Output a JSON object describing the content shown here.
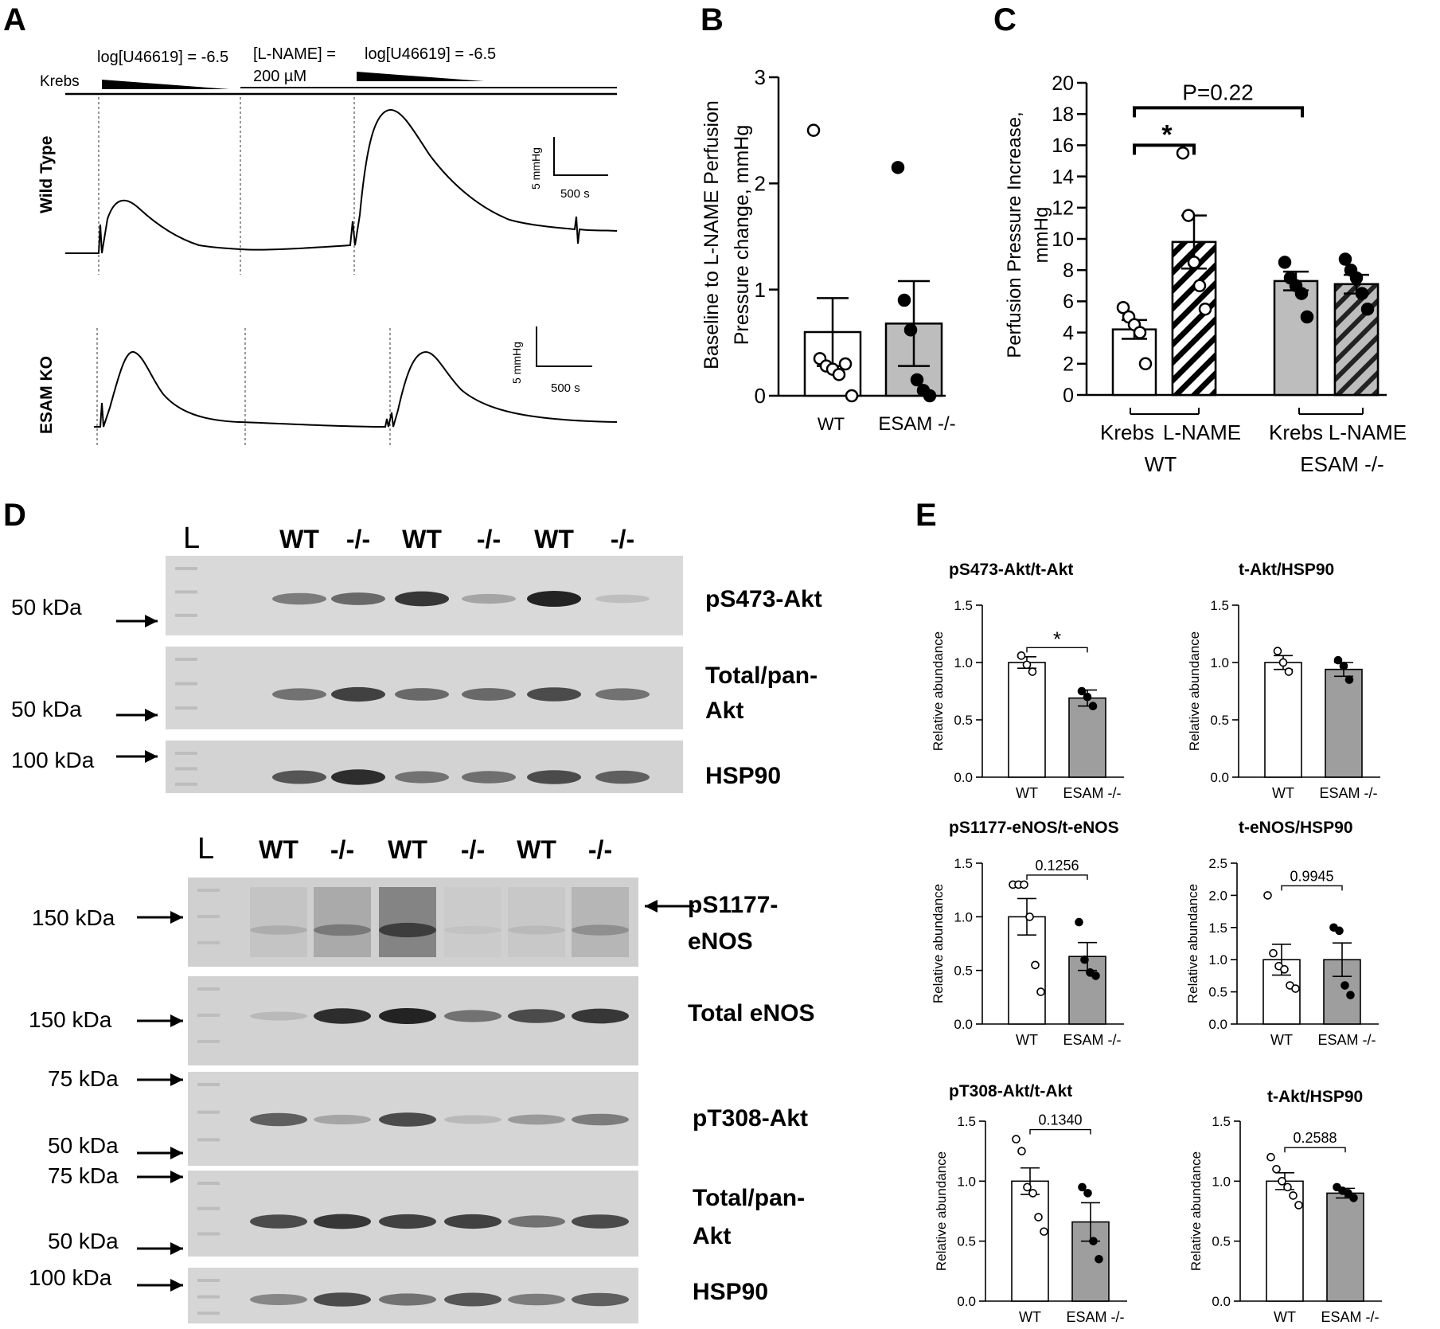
{
  "panel_letters": {
    "a": "A",
    "b": "B",
    "c": "C",
    "d": "D",
    "e": "E"
  },
  "panel_a": {
    "krebs": "Krebs",
    "u46619_first": "log[U46619] = -6.5",
    "lname_line1": "[L-NAME] =",
    "lname_line2": "200 µM",
    "u46619_second": "log[U46619] = -6.5",
    "row_wt": "Wild Type",
    "row_ko": "ESAM KO",
    "scale_y": "5 mmHg",
    "scale_x": "500 s"
  },
  "chart_data": [
    {
      "id": "B",
      "type": "bar",
      "categories": [
        "WT",
        "ESAM -/-"
      ],
      "values": [
        0.6,
        0.68
      ],
      "sem": [
        0.32,
        0.4
      ],
      "points": [
        [
          2.5,
          0.35,
          0.28,
          0.25,
          0.2,
          0.3,
          0.0
        ],
        [
          2.15,
          0.9,
          0.62,
          0.15,
          0.05,
          0.0
        ]
      ],
      "ylabel": [
        "Baseline to L-NAME Perfusion",
        "Pressure change, mmHg"
      ],
      "ylim": [
        0,
        3
      ],
      "yticks": [
        0,
        1,
        2,
        3
      ]
    },
    {
      "id": "C",
      "type": "bar",
      "categories": [
        "Krebs",
        "L-NAME",
        "Krebs",
        "L-NAME"
      ],
      "groups": [
        "WT",
        "ESAM -/-"
      ],
      "values": [
        4.2,
        9.8,
        7.3,
        7.1
      ],
      "sem": [
        0.6,
        1.7,
        0.6,
        0.6
      ],
      "points": [
        [
          5.6,
          5.0,
          4.5,
          4.0,
          2.0
        ],
        [
          15.5,
          11.5,
          8.5,
          7.0,
          5.5
        ],
        [
          8.5,
          7.5,
          7.0,
          6.5,
          5.0
        ],
        [
          8.7,
          8.0,
          7.5,
          6.5,
          5.5
        ]
      ],
      "ylabel": [
        "Perfusion Pressure Increase,",
        "mmHg"
      ],
      "ylim": [
        0,
        20
      ],
      "yticks": [
        0,
        2,
        4,
        6,
        8,
        10,
        12,
        14,
        16,
        18,
        20
      ],
      "annotations": [
        "*",
        "P=0.22"
      ]
    },
    {
      "id": "E1",
      "type": "bar",
      "title": "pS473-Akt/t-Akt",
      "categories": [
        "WT",
        "ESAM -/-"
      ],
      "values": [
        1.0,
        0.69
      ],
      "sem": [
        0.05,
        0.07
      ],
      "points": [
        [
          1.06,
          0.98,
          0.92
        ],
        [
          0.75,
          0.7,
          0.62
        ]
      ],
      "ylabel": "Relative abundance",
      "ylim": [
        0,
        1.5
      ],
      "yticks": [
        "0.0",
        "0.5",
        "1.0",
        "1.5"
      ],
      "annotation": "*"
    },
    {
      "id": "E2",
      "type": "bar",
      "title": "t-Akt/HSP90",
      "categories": [
        "WT",
        "ESAM -/-"
      ],
      "values": [
        1.0,
        0.94
      ],
      "sem": [
        0.06,
        0.06
      ],
      "points": [
        [
          1.1,
          1.0,
          0.92
        ],
        [
          1.02,
          0.97,
          0.85
        ]
      ],
      "ylabel": "Relative abundance",
      "ylim": [
        0,
        1.5
      ],
      "yticks": [
        "0.0",
        "0.5",
        "1.0",
        "1.5"
      ]
    },
    {
      "id": "E3",
      "type": "bar",
      "title": "pS1177-eNOS/t-eNOS",
      "categories": [
        "WT",
        "ESAM -/-"
      ],
      "values": [
        1.0,
        0.63
      ],
      "sem": [
        0.17,
        0.13
      ],
      "points": [
        [
          1.3,
          1.3,
          1.3,
          1.0,
          0.55,
          0.3
        ],
        [
          0.95,
          0.6,
          0.48,
          0.45
        ]
      ],
      "ylabel": "Relative abundance",
      "ylim": [
        0,
        1.5
      ],
      "yticks": [
        "0.0",
        "0.5",
        "1.0",
        "1.5"
      ],
      "annotation": "0.1256"
    },
    {
      "id": "E4",
      "type": "bar",
      "title": "t-eNOS/HSP90",
      "categories": [
        "WT",
        "ESAM -/-"
      ],
      "values": [
        1.0,
        1.0
      ],
      "sem": [
        0.24,
        0.26
      ],
      "points": [
        [
          2.0,
          1.1,
          0.9,
          0.85,
          0.6,
          0.55
        ],
        [
          1.5,
          1.45,
          0.6,
          0.45
        ]
      ],
      "ylabel": "Relative abundance",
      "ylim": [
        0,
        2.5
      ],
      "yticks": [
        "0.0",
        "0.5",
        "1.0",
        "1.5",
        "2.0",
        "2.5"
      ],
      "annotation": "0.9945"
    },
    {
      "id": "E5",
      "type": "bar",
      "title": "pT308-Akt/t-Akt",
      "categories": [
        "WT",
        "ESAM -/-"
      ],
      "values": [
        1.0,
        0.66
      ],
      "sem": [
        0.11,
        0.16
      ],
      "points": [
        [
          1.35,
          1.25,
          0.95,
          0.9,
          0.7,
          0.58
        ],
        [
          0.95,
          0.9,
          0.5,
          0.35
        ]
      ],
      "ylabel": "Relative abundance",
      "ylim": [
        0,
        1.5
      ],
      "yticks": [
        "0.0",
        "0.5",
        "1.0",
        "1.5"
      ],
      "annotation": "0.1340"
    },
    {
      "id": "E6",
      "type": "bar",
      "title": "t-Akt/HSP90",
      "categories": [
        "WT",
        "ESAM -/-"
      ],
      "values": [
        1.0,
        0.9
      ],
      "sem": [
        0.07,
        0.04
      ],
      "points": [
        [
          1.2,
          1.1,
          1.0,
          0.95,
          0.88,
          0.8
        ],
        [
          0.95,
          0.92,
          0.9,
          0.86
        ]
      ],
      "ylabel": "Relative abundance",
      "ylim": [
        0,
        1.5
      ],
      "yticks": [
        "0.0",
        "0.5",
        "1.0",
        "1.5"
      ],
      "annotation": "0.2588"
    }
  ],
  "panel_d": {
    "ladder": "L",
    "lanes": [
      "WT",
      "-/-",
      "WT",
      "-/-",
      "WT",
      "-/-"
    ],
    "blot1": {
      "labels": {
        "b1": "pS473-Akt",
        "b2a": "Total/pan-",
        "b2b": "Akt",
        "b3": "HSP90"
      },
      "markers": {
        "m1": "50 kDa",
        "m2": "50 kDa",
        "m3": "100 kDa"
      },
      "intensity": [
        [
          0.55,
          0.65,
          0.9,
          0.35,
          1.0,
          0.22
        ],
        [
          0.6,
          0.85,
          0.65,
          0.65,
          0.8,
          0.6
        ],
        [
          0.75,
          0.95,
          0.6,
          0.62,
          0.8,
          0.7
        ]
      ]
    },
    "blot2": {
      "labels": {
        "b1a": "pS1177-",
        "b1b": "eNOS",
        "b2": "Total eNOS",
        "b3": "pT308-Akt",
        "b4a": "Total/pan-",
        "b4b": "Akt",
        "b5": "HSP90"
      },
      "markers": {
        "m1": "150 kDa",
        "m2": "150 kDa",
        "m3": "75 kDa",
        "m4": "50 kDa",
        "m5": "75 kDa",
        "m6": "50 kDa",
        "m7": "100 kDa"
      },
      "intensity": [
        [
          0.3,
          0.55,
          0.85,
          0.2,
          0.25,
          0.45
        ],
        [
          0.25,
          0.95,
          1.0,
          0.6,
          0.8,
          0.9
        ],
        [
          0.7,
          0.35,
          0.8,
          0.25,
          0.4,
          0.55
        ],
        [
          0.8,
          0.9,
          0.85,
          0.85,
          0.6,
          0.8
        ],
        [
          0.5,
          0.8,
          0.6,
          0.75,
          0.55,
          0.7
        ]
      ]
    }
  }
}
